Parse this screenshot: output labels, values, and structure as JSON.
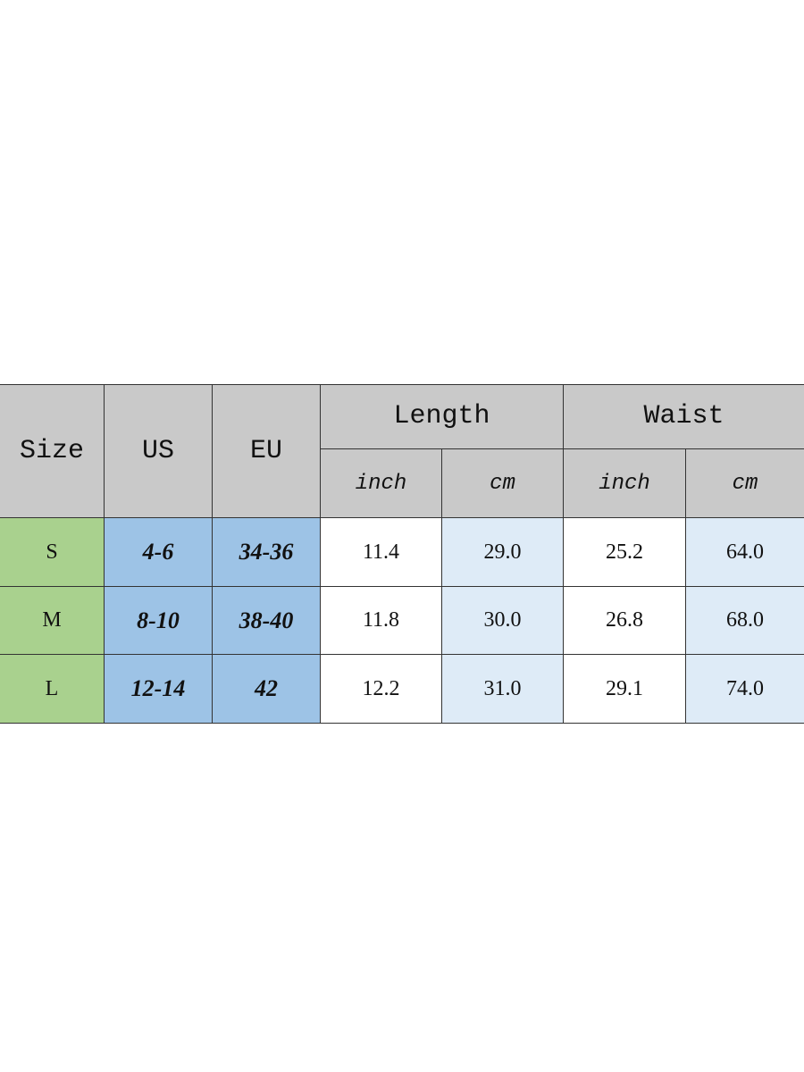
{
  "table": {
    "header": {
      "size": "Size",
      "us": "US",
      "eu": "EU",
      "length": "Length",
      "waist": "Waist",
      "units": [
        "inch",
        "cm",
        "inch",
        "cm"
      ]
    },
    "rows": [
      [
        "S",
        "4-6",
        "34-36",
        "11.4",
        "29.0",
        "25.2",
        "64.0"
      ],
      [
        "M",
        "8-10",
        "38-40",
        "11.8",
        "30.0",
        "26.8",
        "68.0"
      ],
      [
        "L",
        "12-14",
        "42",
        "12.2",
        "31.0",
        "29.1",
        "74.0"
      ]
    ]
  }
}
